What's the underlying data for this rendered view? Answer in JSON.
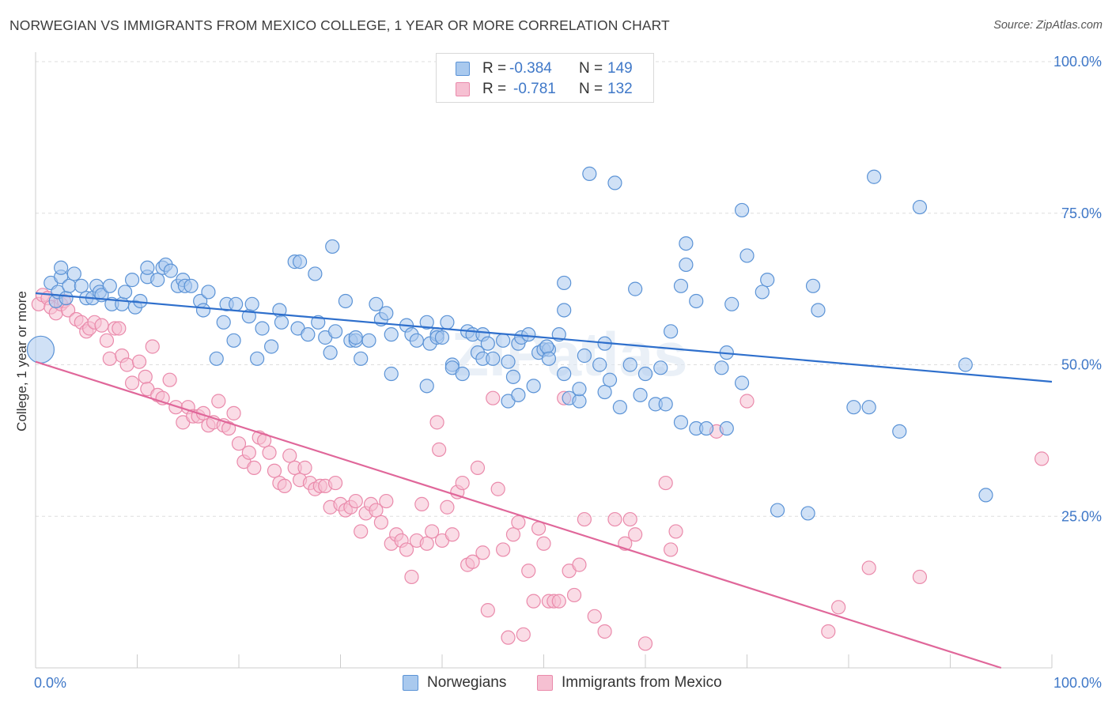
{
  "title": "NORWEGIAN VS IMMIGRANTS FROM MEXICO COLLEGE, 1 YEAR OR MORE CORRELATION CHART",
  "source": "Source: ZipAtlas.com",
  "watermark": "ZIPatlas",
  "legend_top": {
    "rows": [
      {
        "r_label": "R =",
        "r_value": "-0.384",
        "n_label": "N =",
        "n_value": "149"
      },
      {
        "r_label": "R =",
        "r_value": "-0.781",
        "n_label": "N =",
        "n_value": "132"
      }
    ]
  },
  "legend_bottom": {
    "items": [
      "Norwegians",
      "Immigrants from Mexico"
    ]
  },
  "colors": {
    "blue_fill": "#a9c9ee",
    "blue_stroke": "#5b93d6",
    "blue_line": "#2e6fcc",
    "pink_fill": "#f6c0d2",
    "pink_stroke": "#ea8aab",
    "pink_line": "#e0679a",
    "axis_label": "#3f78c8",
    "grid": "#dddddd"
  },
  "chart_data": {
    "type": "scatter",
    "title": "NORWEGIAN VS IMMIGRANTS FROM MEXICO COLLEGE, 1 YEAR OR MORE CORRELATION CHART",
    "xlabel": "",
    "ylabel": "College, 1 year or more",
    "xlim": [
      0,
      100
    ],
    "ylim": [
      0,
      100
    ],
    "x_tick_labels": [
      "0.0%",
      "100.0%"
    ],
    "y_tick_labels": [
      "25.0%",
      "50.0%",
      "75.0%",
      "100.0%"
    ],
    "y_ticks": [
      25,
      50,
      75,
      100
    ],
    "grid": true,
    "legend_position": "bottom",
    "series": [
      {
        "name": "Norwegians",
        "r": -0.384,
        "n": 149,
        "trend": {
          "x": [
            0,
            100
          ],
          "y": [
            61.8,
            47.2
          ]
        },
        "points": [
          [
            0.5,
            52.5
          ],
          [
            1.5,
            63.5
          ],
          [
            2,
            60.5
          ],
          [
            2.2,
            62
          ],
          [
            2.5,
            64.5
          ],
          [
            2.5,
            66
          ],
          [
            3,
            61
          ],
          [
            3.3,
            63
          ],
          [
            3.8,
            65
          ],
          [
            4.5,
            63
          ],
          [
            5,
            61
          ],
          [
            5.6,
            61
          ],
          [
            6,
            63
          ],
          [
            6.3,
            62
          ],
          [
            6.5,
            61.5
          ],
          [
            7.3,
            63
          ],
          [
            7.5,
            60
          ],
          [
            8.5,
            60
          ],
          [
            8.8,
            62
          ],
          [
            9.5,
            64
          ],
          [
            9.8,
            59.5
          ],
          [
            10.3,
            60.5
          ],
          [
            11,
            64.5
          ],
          [
            11,
            66
          ],
          [
            12,
            64
          ],
          [
            12.5,
            66
          ],
          [
            12.8,
            66.5
          ],
          [
            13.3,
            65.5
          ],
          [
            14,
            63
          ],
          [
            14.5,
            64
          ],
          [
            14.7,
            63
          ],
          [
            15.3,
            63
          ],
          [
            16.2,
            60.5
          ],
          [
            16.5,
            59
          ],
          [
            17,
            62
          ],
          [
            17.8,
            51
          ],
          [
            18.5,
            57
          ],
          [
            18.8,
            60
          ],
          [
            19.5,
            54
          ],
          [
            19.7,
            60
          ],
          [
            21,
            58
          ],
          [
            21.3,
            60
          ],
          [
            21.8,
            51
          ],
          [
            22.3,
            56
          ],
          [
            23.2,
            53
          ],
          [
            24,
            59
          ],
          [
            24.2,
            57
          ],
          [
            25.5,
            67
          ],
          [
            25.8,
            56
          ],
          [
            26,
            67
          ],
          [
            26.8,
            55
          ],
          [
            27.5,
            65
          ],
          [
            27.8,
            57
          ],
          [
            28.5,
            54.5
          ],
          [
            29,
            52
          ],
          [
            29.2,
            69.5
          ],
          [
            29.5,
            55.5
          ],
          [
            30.5,
            60.5
          ],
          [
            31,
            54
          ],
          [
            31.5,
            54
          ],
          [
            31.5,
            54.5
          ],
          [
            32,
            51
          ],
          [
            32.8,
            54
          ],
          [
            33.5,
            60
          ],
          [
            34,
            57.5
          ],
          [
            34.5,
            58.5
          ],
          [
            35,
            55
          ],
          [
            35,
            48.5
          ],
          [
            36.5,
            56.5
          ],
          [
            37,
            55
          ],
          [
            37.5,
            54
          ],
          [
            38.5,
            57
          ],
          [
            38.5,
            46.5
          ],
          [
            38.8,
            53.5
          ],
          [
            39.5,
            55
          ],
          [
            39.5,
            54.5
          ],
          [
            40,
            54.5
          ],
          [
            40.5,
            57
          ],
          [
            41,
            50
          ],
          [
            41,
            49.5
          ],
          [
            42,
            48.5
          ],
          [
            42.5,
            55.5
          ],
          [
            43,
            55
          ],
          [
            43.5,
            52
          ],
          [
            44,
            55
          ],
          [
            44,
            51
          ],
          [
            44.5,
            53.5
          ],
          [
            45,
            51
          ],
          [
            46,
            54
          ],
          [
            46.5,
            50.5
          ],
          [
            46.5,
            44
          ],
          [
            47,
            48
          ],
          [
            47.5,
            45
          ],
          [
            47.5,
            53.5
          ],
          [
            47.8,
            54.5
          ],
          [
            48.5,
            55
          ],
          [
            49,
            46.5
          ],
          [
            49.5,
            52
          ],
          [
            50,
            52.5
          ],
          [
            50.5,
            52.5
          ],
          [
            50.3,
            53
          ],
          [
            50.5,
            51
          ],
          [
            51.5,
            55
          ],
          [
            52,
            48.5
          ],
          [
            52,
            59
          ],
          [
            52,
            63.5
          ],
          [
            52.5,
            44.5
          ],
          [
            53.5,
            44
          ],
          [
            53.5,
            46
          ],
          [
            54,
            51.5
          ],
          [
            54.5,
            81.5
          ],
          [
            55.5,
            50
          ],
          [
            56,
            53.5
          ],
          [
            56,
            45.5
          ],
          [
            56.5,
            47.5
          ],
          [
            57.5,
            43
          ],
          [
            57,
            80
          ],
          [
            58.5,
            50
          ],
          [
            59,
            62.5
          ],
          [
            59.5,
            45
          ],
          [
            60,
            48.5
          ],
          [
            61,
            43.5
          ],
          [
            61.5,
            49.5
          ],
          [
            62,
            43.5
          ],
          [
            62.5,
            55.5
          ],
          [
            63.5,
            40.5
          ],
          [
            63.5,
            63
          ],
          [
            64,
            66.5
          ],
          [
            64,
            70
          ],
          [
            65,
            39.5
          ],
          [
            65,
            60.5
          ],
          [
            66,
            39.5
          ],
          [
            67.5,
            49.5
          ],
          [
            68,
            52
          ],
          [
            68,
            39.5
          ],
          [
            68.5,
            60
          ],
          [
            69.5,
            47
          ],
          [
            69.5,
            75.5
          ],
          [
            70,
            68
          ],
          [
            71.5,
            62
          ],
          [
            72,
            64
          ],
          [
            73,
            26
          ],
          [
            76,
            25.5
          ],
          [
            76.5,
            63
          ],
          [
            77,
            59
          ],
          [
            80.5,
            43
          ],
          [
            82,
            43
          ],
          [
            82.5,
            81
          ],
          [
            85,
            39
          ],
          [
            87,
            76
          ],
          [
            91.5,
            50
          ],
          [
            93.5,
            28.5
          ]
        ]
      },
      {
        "name": "Immigrants from Mexico",
        "r": -0.781,
        "n": 132,
        "trend": {
          "x": [
            0,
            95
          ],
          "y": [
            50.5,
            0
          ]
        },
        "points": [
          [
            0.3,
            60
          ],
          [
            0.7,
            61.5
          ],
          [
            1.2,
            61
          ],
          [
            1.5,
            59.5
          ],
          [
            2,
            58.5
          ],
          [
            2.5,
            60
          ],
          [
            2.8,
            60.5
          ],
          [
            3.2,
            59
          ],
          [
            4,
            57.5
          ],
          [
            4.5,
            57
          ],
          [
            5,
            55.5
          ],
          [
            5.3,
            56
          ],
          [
            5.8,
            57
          ],
          [
            6.5,
            56.5
          ],
          [
            7,
            54
          ],
          [
            7.3,
            51
          ],
          [
            7.8,
            56
          ],
          [
            8.2,
            56
          ],
          [
            8.5,
            51.5
          ],
          [
            9,
            50
          ],
          [
            9.5,
            47
          ],
          [
            10.2,
            50.5
          ],
          [
            10.8,
            48
          ],
          [
            11,
            46
          ],
          [
            11.5,
            53
          ],
          [
            12,
            45
          ],
          [
            12.5,
            44.5
          ],
          [
            13.2,
            47.5
          ],
          [
            13.8,
            43
          ],
          [
            14.5,
            40.5
          ],
          [
            15,
            43
          ],
          [
            15.5,
            41.5
          ],
          [
            16,
            41.5
          ],
          [
            16.5,
            42
          ],
          [
            17,
            40
          ],
          [
            17.5,
            40.5
          ],
          [
            18,
            44
          ],
          [
            18.5,
            40
          ],
          [
            19,
            39.5
          ],
          [
            19.5,
            42
          ],
          [
            20,
            37
          ],
          [
            20.5,
            34
          ],
          [
            21,
            35.5
          ],
          [
            21.5,
            33
          ],
          [
            22,
            38
          ],
          [
            22.5,
            37.5
          ],
          [
            23,
            35.5
          ],
          [
            23.5,
            32.5
          ],
          [
            24,
            30.5
          ],
          [
            24.5,
            30
          ],
          [
            25,
            35
          ],
          [
            25.5,
            33
          ],
          [
            26,
            31
          ],
          [
            26.5,
            33
          ],
          [
            27,
            30.5
          ],
          [
            27.5,
            29.5
          ],
          [
            28,
            30
          ],
          [
            28.5,
            30
          ],
          [
            29,
            26.5
          ],
          [
            29.5,
            30.5
          ],
          [
            30,
            27
          ],
          [
            30.5,
            26
          ],
          [
            31,
            26.5
          ],
          [
            31.5,
            27.5
          ],
          [
            32,
            22.5
          ],
          [
            32.5,
            25.5
          ],
          [
            33,
            27
          ],
          [
            33.5,
            26
          ],
          [
            34,
            24
          ],
          [
            34.5,
            27.5
          ],
          [
            35,
            20.5
          ],
          [
            35.5,
            22
          ],
          [
            36,
            21
          ],
          [
            36.5,
            19.5
          ],
          [
            37,
            15
          ],
          [
            37.5,
            21
          ],
          [
            38,
            27
          ],
          [
            38.5,
            20.5
          ],
          [
            39,
            22.5
          ],
          [
            39.5,
            40.5
          ],
          [
            39.7,
            36
          ],
          [
            40,
            21
          ],
          [
            40.5,
            26.5
          ],
          [
            41,
            22
          ],
          [
            41.5,
            29
          ],
          [
            42,
            30.5
          ],
          [
            42.5,
            17
          ],
          [
            43,
            17.5
          ],
          [
            43.5,
            33
          ],
          [
            44,
            19
          ],
          [
            44.5,
            9.5
          ],
          [
            45,
            44.5
          ],
          [
            45.5,
            29.5
          ],
          [
            46,
            19.5
          ],
          [
            46.5,
            5
          ],
          [
            47,
            22
          ],
          [
            47.5,
            24
          ],
          [
            48,
            5.5
          ],
          [
            48.5,
            16
          ],
          [
            49,
            11
          ],
          [
            49.5,
            23
          ],
          [
            50,
            20.5
          ],
          [
            50.5,
            11
          ],
          [
            51,
            11
          ],
          [
            51.5,
            11
          ],
          [
            52,
            44.5
          ],
          [
            52.5,
            16
          ],
          [
            53,
            12
          ],
          [
            53.5,
            17
          ],
          [
            54,
            24.5
          ],
          [
            55,
            8.5
          ],
          [
            56,
            6
          ],
          [
            57,
            24.5
          ],
          [
            58,
            20.5
          ],
          [
            58.5,
            24.5
          ],
          [
            59,
            22
          ],
          [
            60,
            4
          ],
          [
            62,
            30.5
          ],
          [
            62.5,
            19.5
          ],
          [
            63,
            22.5
          ],
          [
            67,
            39
          ],
          [
            70,
            44
          ],
          [
            78,
            6
          ],
          [
            79,
            10
          ],
          [
            82,
            16.5
          ],
          [
            87,
            15
          ],
          [
            99,
            34.5
          ]
        ]
      }
    ]
  }
}
